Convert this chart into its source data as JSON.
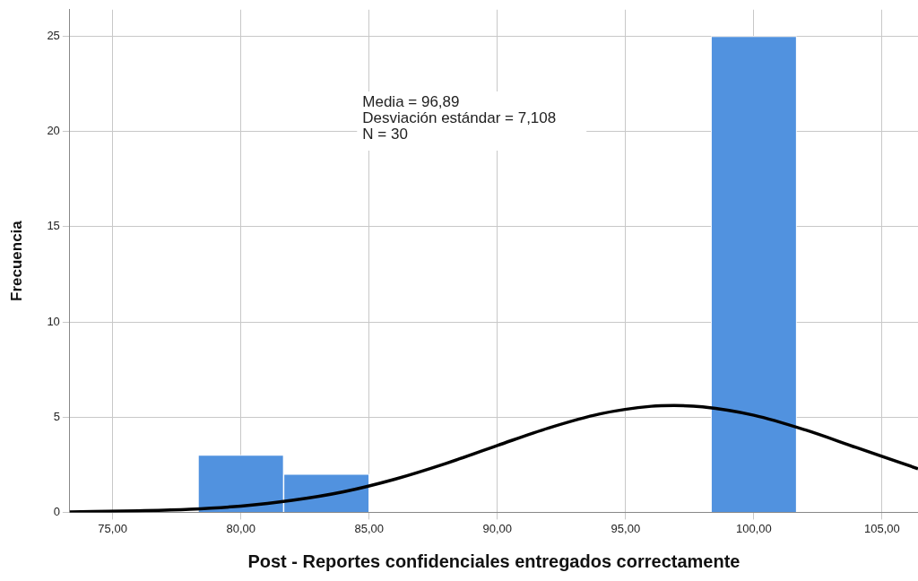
{
  "chart_data": {
    "type": "histogram",
    "xlabel": "Post - Reportes confidenciales entregados correctamente",
    "ylabel": "Frecuencia",
    "annotations": [
      "Media = 96,89\nDesviación estándar = 7,108\nN = 30"
    ],
    "series": [
      {
        "type": "histogram",
        "color": "#5192df",
        "bins": [
          78.33,
          81.67,
          85,
          88.33,
          91.67,
          95,
          98.33,
          101.67
        ],
        "values": [
          3,
          2,
          0,
          0,
          0,
          0,
          25
        ]
      },
      {
        "type": "line",
        "color": "#000000",
        "x": [
          73.33,
          76,
          78,
          80,
          82,
          84,
          86,
          88,
          90,
          92,
          94,
          96,
          96.89,
          98,
          100,
          102,
          104,
          106.4
        ],
        "values": [
          0.02,
          0.08,
          0.16,
          0.33,
          0.63,
          1.08,
          1.74,
          2.57,
          3.51,
          4.43,
          5.17,
          5.57,
          5.61,
          5.54,
          5.1,
          4.33,
          3.4,
          2.29
        ]
      }
    ],
    "xlim": [
      73.33,
      106.4
    ],
    "xticks": [
      {
        "value": 75,
        "label": "75,00"
      },
      {
        "value": 80,
        "label": "80,00"
      },
      {
        "value": 85,
        "label": "85,00"
      },
      {
        "value": 90,
        "label": "90,00"
      },
      {
        "value": 95,
        "label": "95,00"
      },
      {
        "value": 100,
        "label": "100,00"
      },
      {
        "value": 105,
        "label": "105,00"
      }
    ],
    "ylim": [
      0,
      26.4
    ],
    "yticks": [
      0,
      5,
      10,
      15,
      20,
      25
    ],
    "grid": true,
    "legend": false,
    "marker": "none",
    "line_style": "solid"
  }
}
